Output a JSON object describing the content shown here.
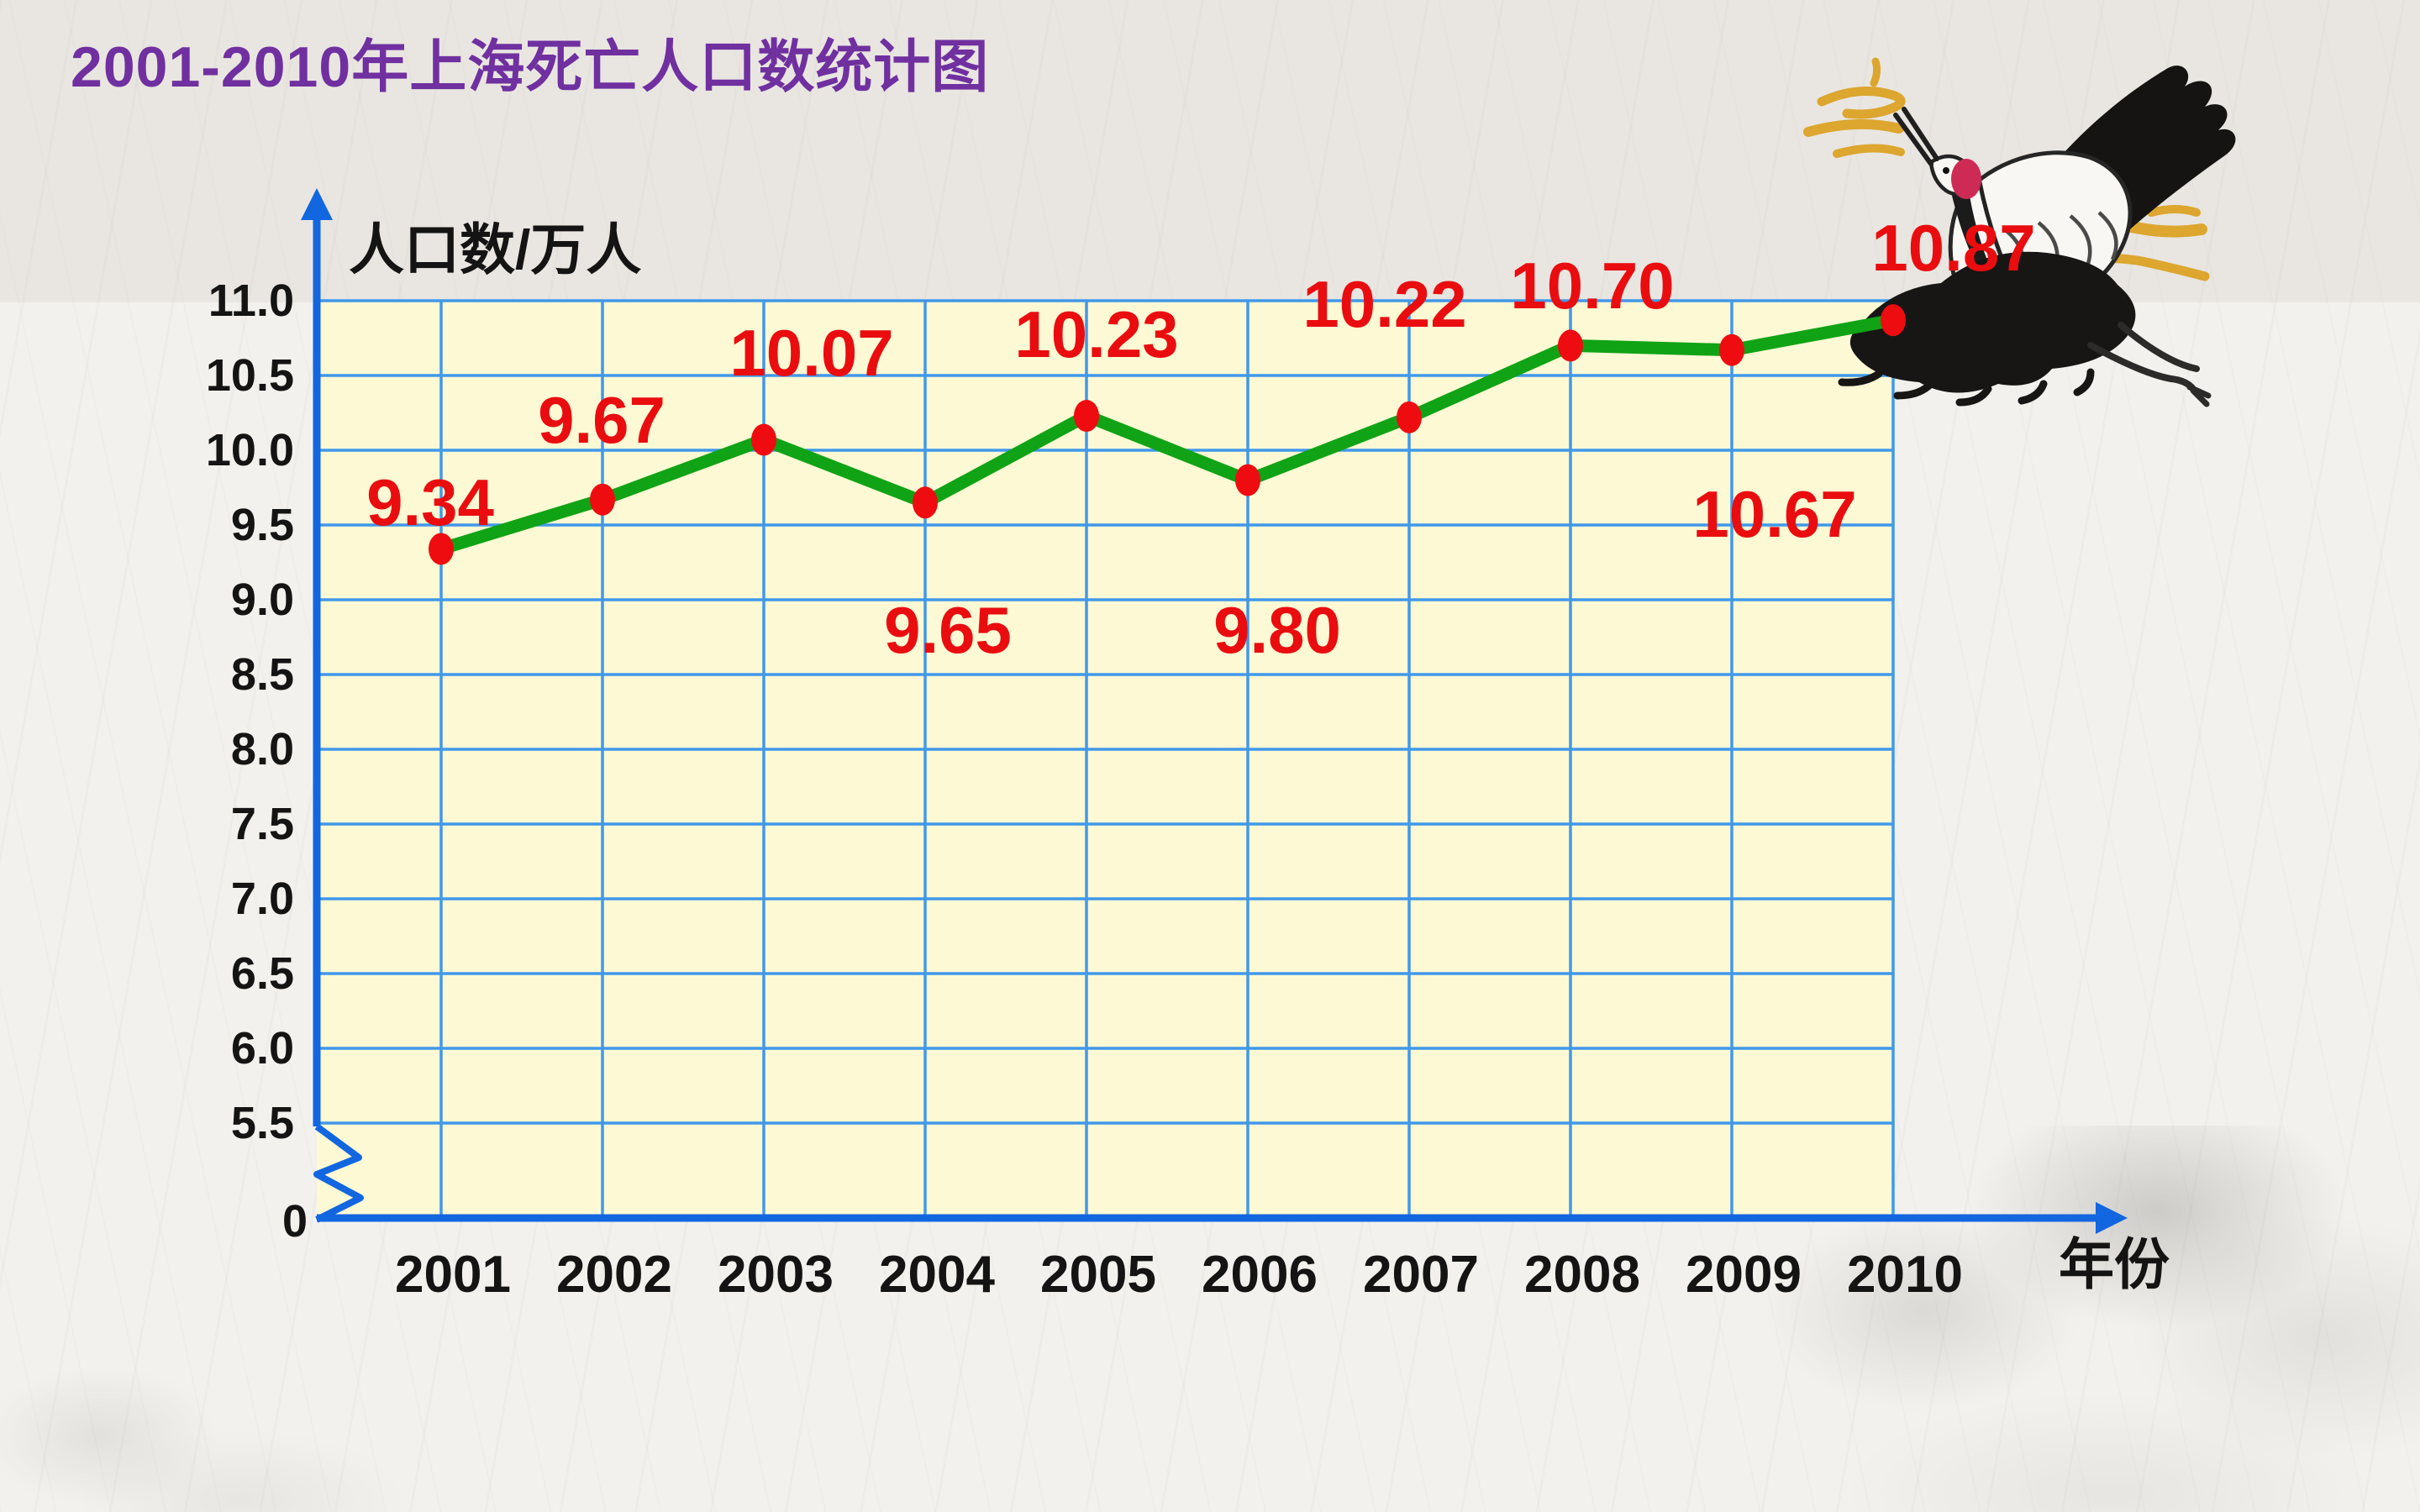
{
  "chart_data": {
    "type": "line",
    "title": "2001-2010年上海死亡人口数统计图",
    "ylabel": "人口数/万人",
    "xlabel": "年份",
    "categories": [
      "2001",
      "2002",
      "2003",
      "2004",
      "2005",
      "2006",
      "2007",
      "2008",
      "2009",
      "2010"
    ],
    "values": [
      9.34,
      9.67,
      10.07,
      9.65,
      10.23,
      9.8,
      10.22,
      10.7,
      10.67,
      10.87
    ],
    "point_labels": [
      "9.34",
      "9.67",
      "10.07",
      "9.65",
      "10.23",
      "9.80",
      "10.22",
      "10.70",
      "10.67",
      "10.87"
    ],
    "y_ticks": [
      "11.0",
      "10.5",
      "10.0",
      "9.5",
      "9.0",
      "8.5",
      "8.0",
      "7.5",
      "7.0",
      "6.5",
      "6.0",
      "5.5"
    ],
    "y_origin_label": "0",
    "y_axis_break": true,
    "ylim": [
      5.5,
      11.0
    ],
    "grid": true,
    "legend": "none",
    "colors": {
      "line": "#10a315",
      "point": "#ee0c10",
      "point_label": "#e90d10",
      "grid": "#4098ea",
      "axis": "#1266e0",
      "plot_bg": "#fcf9d4",
      "tick_text": "#141414",
      "title": "#7030a0"
    },
    "label_anchors": [
      [
        512,
        598
      ],
      [
        716,
        500
      ],
      [
        966,
        420
      ],
      [
        1128,
        750
      ],
      [
        1305,
        398
      ],
      [
        1520,
        750
      ],
      [
        1648,
        362
      ],
      [
        1895,
        340
      ],
      [
        2112,
        612
      ],
      [
        2325,
        295
      ]
    ]
  },
  "decor": {
    "top_right_illustration": "red-crowned-crane",
    "cloud_icons": "golden-clouds",
    "seal_icon": "red-seal-stamp",
    "background_style": "ink-wash-paper"
  }
}
